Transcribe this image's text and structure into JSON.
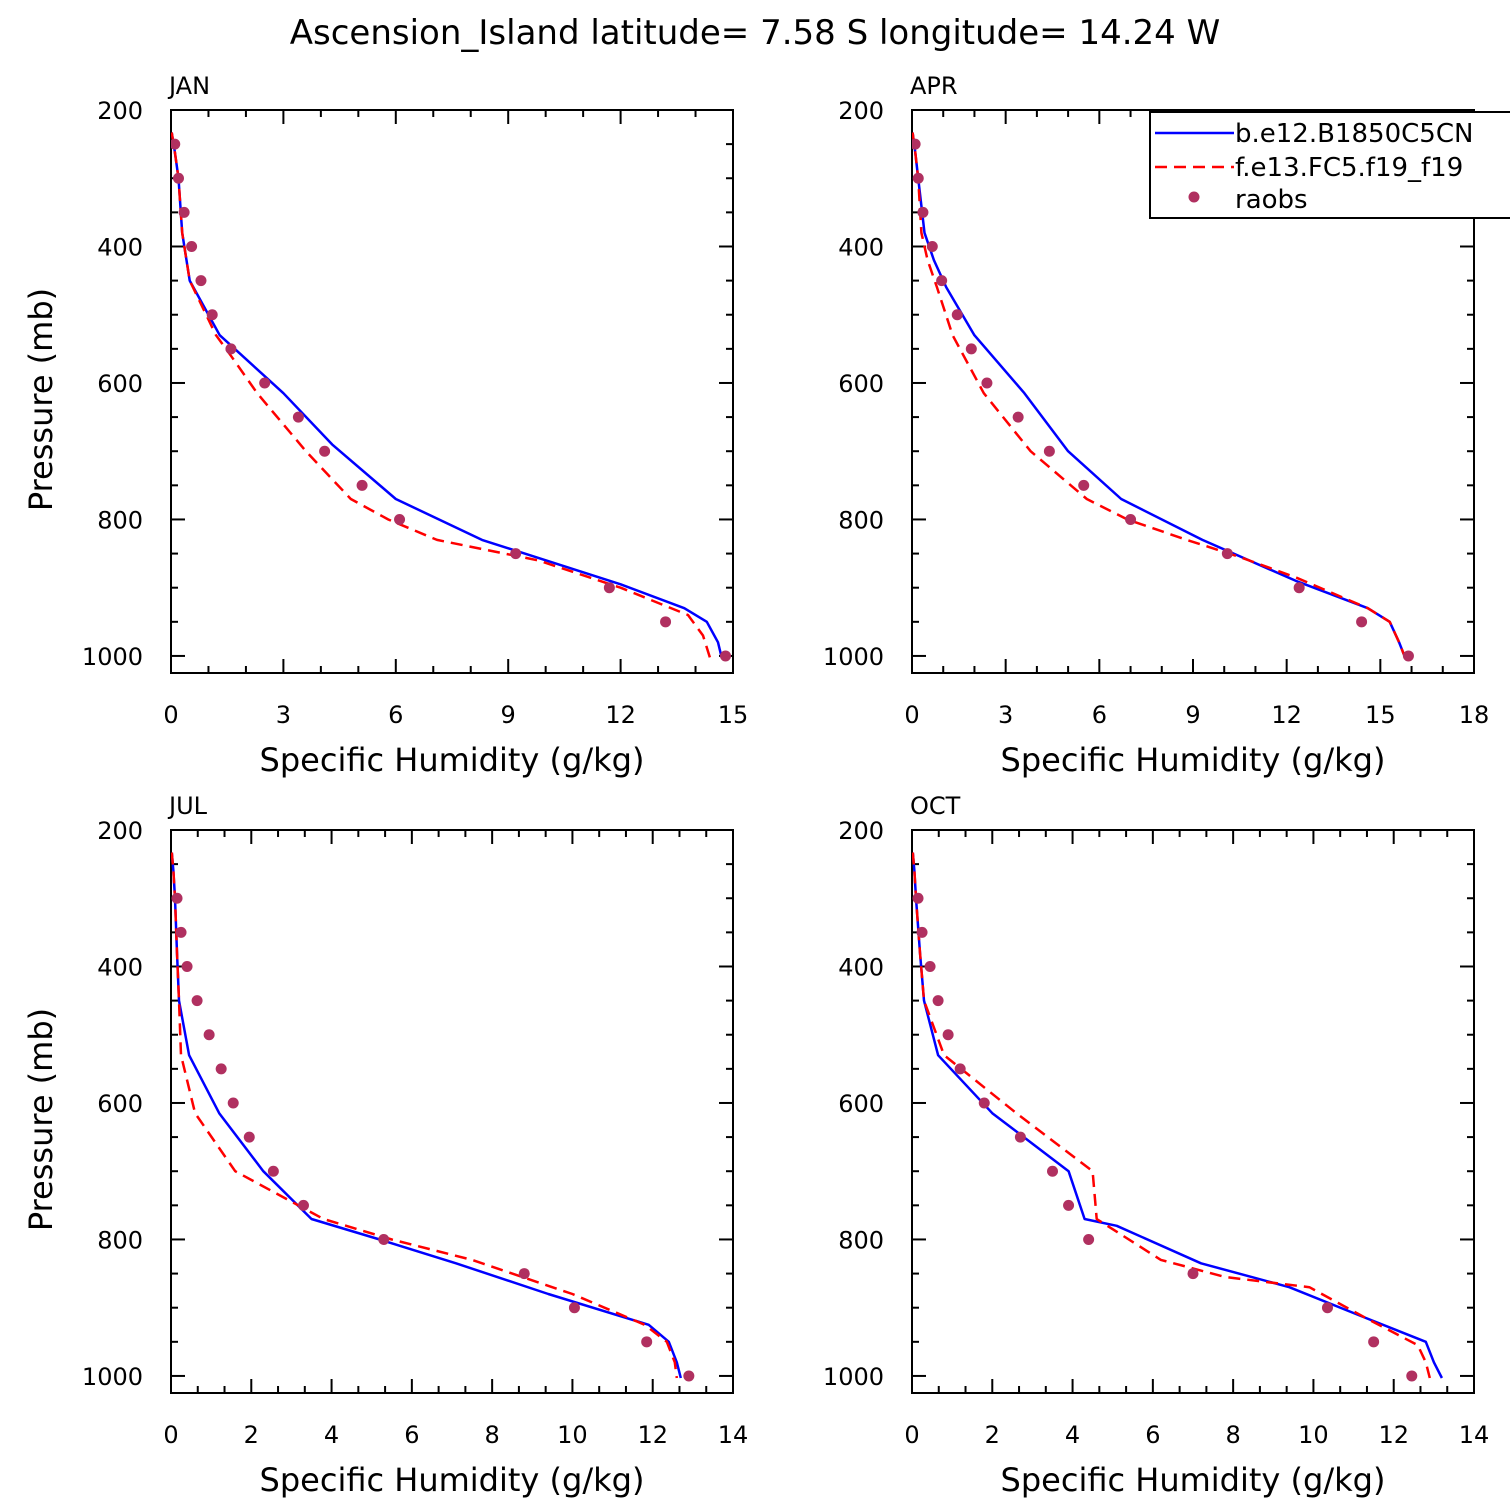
{
  "figure_title": "Ascension_Island  latitude= 7.58 S longitude= 14.24 W",
  "legend": {
    "placement": "top-right (APR panel, clipped at figure edge)",
    "entries": [
      {
        "label": "b.e12.B1850C5CN",
        "style": "solid",
        "color": "#0000ff"
      },
      {
        "label": "f.e13.FC5.f19_f19",
        "style": "dashed",
        "color": "#ff0000"
      },
      {
        "label": "raobs",
        "style": "dot",
        "color": "#b03060"
      }
    ]
  },
  "chart_data": [
    {
      "type": "line",
      "panel": "JAN",
      "xlabel": "Specific Humidity (g/kg)",
      "ylabel": "Pressure (mb)",
      "xlim": [
        0,
        15
      ],
      "xticks": [
        0,
        3,
        6,
        9,
        12,
        15
      ],
      "ylim": [
        200,
        1025
      ],
      "yticks": [
        200,
        400,
        600,
        800,
        1000
      ],
      "y_inverted": true,
      "series": [
        {
          "name": "b.e12.B1850C5CN",
          "style": "solid",
          "color": "#0000ff",
          "x": [
            0.02,
            0.1,
            0.2,
            0.3,
            0.5,
            1.3,
            1.7,
            3.0,
            4.3,
            6.0,
            8.3,
            12.0,
            13.7,
            14.3,
            14.6,
            14.7
          ],
          "y": [
            233,
            260,
            300,
            380,
            450,
            530,
            550,
            615,
            690,
            770,
            830,
            895,
            930,
            950,
            980,
            1003
          ]
        },
        {
          "name": "f.e13.FC5.f19_f19",
          "style": "dashed",
          "color": "#ff0000",
          "x": [
            0.02,
            0.1,
            0.2,
            0.3,
            0.5,
            1.2,
            1.6,
            2.3,
            3.6,
            4.8,
            5.8,
            7.1,
            9.8,
            12.0,
            13.8,
            14.2,
            14.4
          ],
          "y": [
            233,
            260,
            300,
            380,
            450,
            530,
            560,
            615,
            700,
            770,
            800,
            830,
            860,
            900,
            940,
            970,
            1005
          ]
        },
        {
          "name": "raobs",
          "style": "dot",
          "color": "#b03060",
          "x": [
            0.1,
            0.2,
            0.35,
            0.55,
            0.8,
            1.1,
            1.6,
            2.5,
            3.4,
            4.1,
            5.1,
            6.1,
            9.2,
            11.7,
            13.2,
            14.8
          ],
          "y": [
            250,
            300,
            350,
            400,
            450,
            500,
            550,
            600,
            650,
            700,
            750,
            800,
            850,
            900,
            950,
            1000
          ]
        }
      ]
    },
    {
      "type": "line",
      "panel": "APR",
      "xlabel": "Specific Humidity (g/kg)",
      "ylabel": "",
      "xlim": [
        0,
        18
      ],
      "xticks": [
        0,
        3,
        6,
        9,
        12,
        15,
        18
      ],
      "ylim": [
        200,
        1025
      ],
      "yticks": [
        200,
        400,
        600,
        800,
        1000
      ],
      "y_inverted": true,
      "series": [
        {
          "name": "b.e12.B1850C5CN",
          "style": "solid",
          "color": "#0000ff",
          "x": [
            0.02,
            0.1,
            0.2,
            0.4,
            0.7,
            1.1,
            2.0,
            3.6,
            5.0,
            6.7,
            9.3,
            12.3,
            14.6,
            15.3,
            15.6,
            15.8
          ],
          "y": [
            233,
            260,
            300,
            380,
            420,
            460,
            530,
            615,
            700,
            770,
            830,
            890,
            930,
            950,
            980,
            1003
          ]
        },
        {
          "name": "f.e13.FC5.f19_f19",
          "style": "dashed",
          "color": "#ff0000",
          "x": [
            0.02,
            0.1,
            0.2,
            0.3,
            0.5,
            0.8,
            1.3,
            2.3,
            3.8,
            5.6,
            6.9,
            8.8,
            10.5,
            12.3,
            14.6,
            15.3,
            15.6,
            15.8
          ],
          "y": [
            233,
            260,
            300,
            380,
            420,
            460,
            530,
            615,
            700,
            770,
            800,
            830,
            855,
            885,
            930,
            950,
            980,
            1003
          ]
        },
        {
          "name": "raobs",
          "style": "dot",
          "color": "#b03060",
          "x": [
            0.1,
            0.2,
            0.35,
            0.65,
            0.95,
            1.45,
            1.9,
            2.4,
            3.4,
            4.4,
            5.5,
            7.0,
            10.1,
            12.4,
            14.4,
            15.9
          ],
          "y": [
            250,
            300,
            350,
            400,
            450,
            500,
            550,
            600,
            650,
            700,
            750,
            800,
            850,
            900,
            950,
            1000
          ]
        }
      ]
    },
    {
      "type": "line",
      "panel": "JUL",
      "xlabel": "Specific Humidity (g/kg)",
      "ylabel": "Pressure (mb)",
      "xlim": [
        0,
        14
      ],
      "xticks": [
        0,
        2,
        4,
        6,
        8,
        10,
        12,
        14
      ],
      "ylim": [
        200,
        1025
      ],
      "yticks": [
        200,
        400,
        600,
        800,
        1000
      ],
      "y_inverted": true,
      "series": [
        {
          "name": "b.e12.B1850C5CN",
          "style": "solid",
          "color": "#0000ff",
          "x": [
            0.02,
            0.06,
            0.1,
            0.15,
            0.2,
            0.45,
            1.2,
            2.3,
            3.5,
            5.2,
            7.1,
            9.4,
            11.9,
            12.4,
            12.6,
            12.7
          ],
          "y": [
            233,
            260,
            300,
            380,
            450,
            530,
            615,
            700,
            770,
            800,
            835,
            880,
            925,
            950,
            980,
            1003
          ]
        },
        {
          "name": "f.e13.FC5.f19_f19",
          "style": "dashed",
          "color": "#ff0000",
          "x": [
            0.02,
            0.06,
            0.1,
            0.15,
            0.2,
            0.25,
            0.6,
            1.6,
            3.8,
            5.5,
            7.5,
            10.0,
            11.8,
            12.35,
            12.55,
            12.6
          ],
          "y": [
            233,
            260,
            300,
            380,
            450,
            530,
            615,
            700,
            770,
            800,
            830,
            880,
            925,
            950,
            980,
            1003
          ]
        },
        {
          "name": "raobs",
          "style": "dot",
          "color": "#b03060",
          "x": [
            0.15,
            0.25,
            0.4,
            0.65,
            0.95,
            1.25,
            1.55,
            1.95,
            2.55,
            3.3,
            5.3,
            8.8,
            10.05,
            11.85,
            12.9
          ],
          "y": [
            300,
            350,
            400,
            450,
            500,
            550,
            600,
            650,
            700,
            750,
            800,
            850,
            900,
            950,
            1000
          ]
        }
      ]
    },
    {
      "type": "line",
      "panel": "OCT",
      "xlabel": "Specific Humidity (g/kg)",
      "ylabel": "",
      "xlim": [
        0,
        14
      ],
      "xticks": [
        0,
        2,
        4,
        6,
        8,
        10,
        12,
        14
      ],
      "ylim": [
        200,
        1025
      ],
      "yticks": [
        200,
        400,
        600,
        800,
        1000
      ],
      "y_inverted": true,
      "series": [
        {
          "name": "b.e12.B1850C5CN",
          "style": "solid",
          "color": "#0000ff",
          "x": [
            0.02,
            0.06,
            0.1,
            0.2,
            0.3,
            0.65,
            2.0,
            3.9,
            4.3,
            5.1,
            7.2,
            9.4,
            11.3,
            12.8,
            13.0,
            13.2
          ],
          "y": [
            233,
            260,
            300,
            380,
            450,
            530,
            615,
            700,
            770,
            780,
            835,
            870,
            915,
            950,
            980,
            1003
          ]
        },
        {
          "name": "f.e13.FC5.f19_f19",
          "style": "dashed",
          "color": "#ff0000",
          "x": [
            0.02,
            0.06,
            0.1,
            0.2,
            0.3,
            0.8,
            2.6,
            4.5,
            4.6,
            6.2,
            7.8,
            9.9,
            11.3,
            12.6,
            12.8,
            12.9
          ],
          "y": [
            233,
            260,
            300,
            380,
            450,
            530,
            615,
            700,
            770,
            830,
            855,
            870,
            915,
            955,
            980,
            1003
          ]
        },
        {
          "name": "raobs",
          "style": "dot",
          "color": "#b03060",
          "x": [
            0.15,
            0.25,
            0.45,
            0.65,
            0.9,
            1.2,
            1.8,
            2.7,
            3.5,
            3.9,
            4.4,
            7.0,
            10.35,
            11.5,
            12.45
          ],
          "y": [
            300,
            350,
            400,
            450,
            500,
            550,
            600,
            650,
            700,
            750,
            800,
            850,
            900,
            950,
            1000
          ]
        }
      ]
    }
  ]
}
